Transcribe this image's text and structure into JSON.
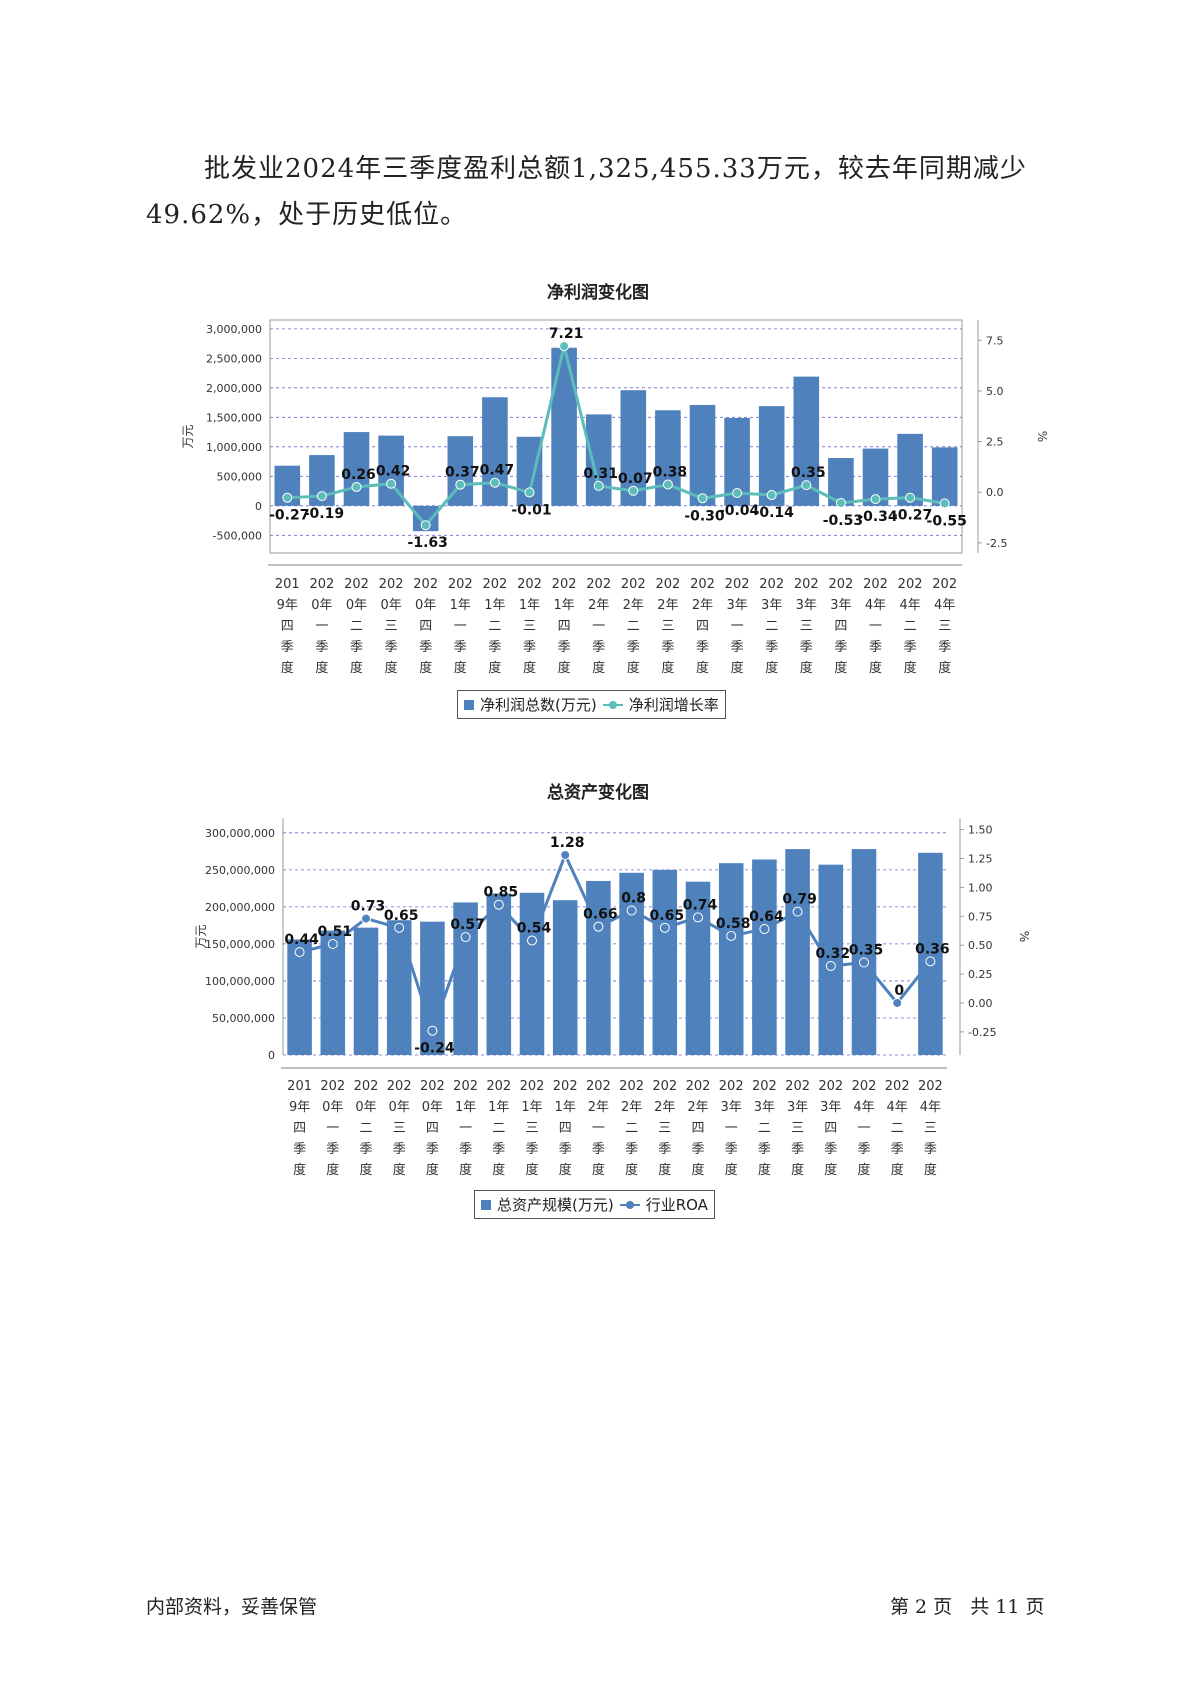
{
  "paragraph": "批发业2024年三季度盈利总额1,325,455.33万元，较去年同期减少49.62%，处于历史低位。",
  "colors": {
    "bar": "#4f81bd",
    "line1": "#5cbdb9",
    "line2": "#4f81bd",
    "grid": "#6a6ad8"
  },
  "footer": {
    "left": "内部资料，妥善保管",
    "right": "第 2 页   共 11 页"
  },
  "chart_data": [
    {
      "type": "bar+line",
      "title": "净利润变化图",
      "ylabel": "万元",
      "y2label": "%",
      "ylim": [
        -800000,
        3150000
      ],
      "y2lim": [
        -3.0,
        8.5
      ],
      "yticks": [
        "3,000,000",
        "2,500,000",
        "2,000,000",
        "1,500,000",
        "1,000,000",
        "500,000",
        "0",
        "-500,000"
      ],
      "ytick_values": [
        3000000,
        2500000,
        2000000,
        1500000,
        1000000,
        500000,
        0,
        -500000
      ],
      "y2ticks": [
        "7.5",
        "5.0",
        "2.5",
        "0.0",
        "-2.5"
      ],
      "y2tick_values": [
        7.5,
        5.0,
        2.5,
        0.0,
        -2.5
      ],
      "categories": [
        "2019年四季度",
        "2020年一季度",
        "2020年二季度",
        "2020年三季度",
        "2020年四季度",
        "2021年一季度",
        "2021年二季度",
        "2021年三季度",
        "2021年四季度",
        "2022年一季度",
        "2022年二季度",
        "2022年三季度",
        "2022年四季度",
        "2023年一季度",
        "2023年二季度",
        "2023年三季度",
        "2023年四季度",
        "2024年一季度",
        "2024年二季度",
        "2024年三季度"
      ],
      "series": [
        {
          "name": "净利润总数(万元)",
          "kind": "bar",
          "values": [
            680000,
            860000,
            1250000,
            1190000,
            -430000,
            1180000,
            1840000,
            1170000,
            2680000,
            1550000,
            1960000,
            1620000,
            1710000,
            1490000,
            1690000,
            2190000,
            810000,
            970000,
            1220000,
            990000
          ]
        },
        {
          "name": "净利润增长率",
          "kind": "line",
          "values": [
            -0.27,
            -0.19,
            0.26,
            0.42,
            -1.63,
            0.37,
            0.47,
            -0.01,
            7.21,
            0.31,
            0.07,
            0.38,
            -0.3,
            -0.04,
            -0.14,
            0.35,
            -0.53,
            -0.34,
            -0.27,
            -0.55
          ],
          "labels": [
            "-0.27",
            "-0.19",
            "0.26",
            "0.42",
            "-1.63",
            "0.37",
            "0.47",
            "-0.01",
            "7.21",
            "0.31",
            "0.07",
            "0.38",
            "-0.30",
            "-0.04",
            "-0.14",
            "0.35",
            "-0.53",
            "-0.34",
            "-0.27",
            "-0.55"
          ]
        }
      ]
    },
    {
      "type": "bar+line",
      "title": "总资产变化图",
      "ylabel": "万元",
      "y2label": "%",
      "ylim": [
        0,
        320000000
      ],
      "y2lim": [
        -0.45,
        1.6
      ],
      "yticks": [
        "300,000,000",
        "250,000,000",
        "200,000,000",
        "150,000,000",
        "100,000,000",
        "50,000,000",
        "0"
      ],
      "ytick_values": [
        300000000,
        250000000,
        200000000,
        150000000,
        100000000,
        50000000,
        0
      ],
      "y2ticks": [
        "1.50",
        "1.25",
        "1.00",
        "0.75",
        "0.50",
        "0.25",
        "0.00",
        "-0.25"
      ],
      "y2tick_values": [
        1.5,
        1.25,
        1.0,
        0.75,
        0.5,
        0.25,
        0.0,
        -0.25
      ],
      "categories": [
        "2019年四季度",
        "2020年一季度",
        "2020年二季度",
        "2020年三季度",
        "2020年四季度",
        "2021年一季度",
        "2021年二季度",
        "2021年三季度",
        "2021年四季度",
        "2022年一季度",
        "2022年二季度",
        "2022年三季度",
        "2022年四季度",
        "2023年一季度",
        "2023年二季度",
        "2023年三季度",
        "2023年四季度",
        "2024年一季度",
        "2024年二季度",
        "2024年三季度"
      ],
      "series": [
        {
          "name": "总资产规模(万元)",
          "kind": "bar",
          "values": [
            156000000,
            168000000,
            172000000,
            182000000,
            180000000,
            206000000,
            218000000,
            219000000,
            209000000,
            235000000,
            246000000,
            250000000,
            234000000,
            259000000,
            264000000,
            278000000,
            257000000,
            278000000,
            null,
            273000000
          ]
        },
        {
          "name": "行业ROA",
          "kind": "line",
          "values": [
            0.44,
            0.51,
            0.73,
            0.65,
            -0.24,
            0.57,
            0.85,
            0.54,
            1.28,
            0.66,
            0.8,
            0.65,
            0.74,
            0.58,
            0.64,
            0.79,
            0.32,
            0.35,
            0.0,
            0.36
          ],
          "labels": [
            "0.44",
            "0.51",
            "0.73",
            "0.65",
            "-0.24",
            "0.57",
            "0.85",
            "0.54",
            "1.28",
            "0.66",
            "0.8",
            "0.65",
            "0.74",
            "0.58",
            "0.64",
            "0.79",
            "0.32",
            "0.35",
            "0",
            "0.36"
          ]
        }
      ]
    }
  ]
}
